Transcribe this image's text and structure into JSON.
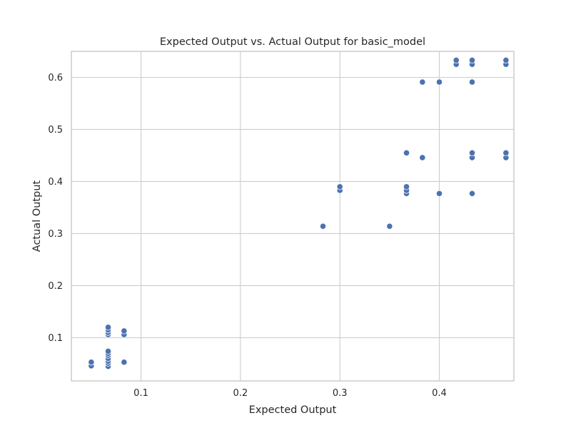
{
  "chart_data": {
    "type": "scatter",
    "title": "Expected Output vs. Actual Output for basic_model",
    "xlabel": "Expected Output",
    "ylabel": "Actual Output",
    "xlim": [
      0.03,
      0.475
    ],
    "ylim": [
      0.017,
      0.65
    ],
    "xticks": [
      0.1,
      0.2,
      0.3,
      0.4
    ],
    "xtick_labels": [
      "0.1",
      "0.2",
      "0.3",
      "0.4"
    ],
    "yticks": [
      0.1,
      0.2,
      0.3,
      0.4,
      0.5,
      0.6
    ],
    "ytick_labels": [
      "0.1",
      "0.2",
      "0.3",
      "0.4",
      "0.5",
      "0.6"
    ],
    "grid": true,
    "point_color": "#4c72b0",
    "series": [
      {
        "points": [
          {
            "x": 0.05,
            "y": 0.046
          },
          {
            "x": 0.05,
            "y": 0.053
          },
          {
            "x": 0.067,
            "y": 0.045
          },
          {
            "x": 0.067,
            "y": 0.051
          },
          {
            "x": 0.067,
            "y": 0.055
          },
          {
            "x": 0.067,
            "y": 0.06
          },
          {
            "x": 0.067,
            "y": 0.066
          },
          {
            "x": 0.067,
            "y": 0.07
          },
          {
            "x": 0.067,
            "y": 0.074
          },
          {
            "x": 0.067,
            "y": 0.106
          },
          {
            "x": 0.067,
            "y": 0.11
          },
          {
            "x": 0.067,
            "y": 0.115
          },
          {
            "x": 0.067,
            "y": 0.12
          },
          {
            "x": 0.083,
            "y": 0.053
          },
          {
            "x": 0.083,
            "y": 0.106
          },
          {
            "x": 0.083,
            "y": 0.113
          },
          {
            "x": 0.283,
            "y": 0.314
          },
          {
            "x": 0.3,
            "y": 0.383
          },
          {
            "x": 0.3,
            "y": 0.39
          },
          {
            "x": 0.35,
            "y": 0.314
          },
          {
            "x": 0.367,
            "y": 0.377
          },
          {
            "x": 0.367,
            "y": 0.383
          },
          {
            "x": 0.367,
            "y": 0.39
          },
          {
            "x": 0.367,
            "y": 0.455
          },
          {
            "x": 0.383,
            "y": 0.446
          },
          {
            "x": 0.383,
            "y": 0.591
          },
          {
            "x": 0.4,
            "y": 0.377
          },
          {
            "x": 0.4,
            "y": 0.591
          },
          {
            "x": 0.417,
            "y": 0.625
          },
          {
            "x": 0.417,
            "y": 0.633
          },
          {
            "x": 0.433,
            "y": 0.377
          },
          {
            "x": 0.433,
            "y": 0.446
          },
          {
            "x": 0.433,
            "y": 0.455
          },
          {
            "x": 0.433,
            "y": 0.591
          },
          {
            "x": 0.433,
            "y": 0.625
          },
          {
            "x": 0.433,
            "y": 0.633
          },
          {
            "x": 0.467,
            "y": 0.446
          },
          {
            "x": 0.467,
            "y": 0.455
          },
          {
            "x": 0.467,
            "y": 0.625
          },
          {
            "x": 0.467,
            "y": 0.633
          }
        ]
      }
    ]
  }
}
